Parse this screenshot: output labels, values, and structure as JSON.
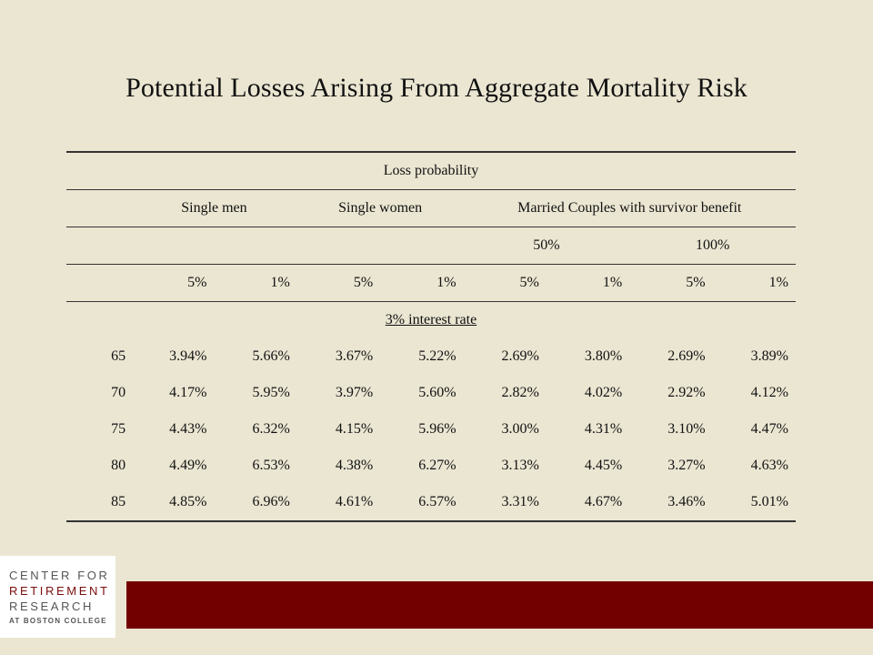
{
  "title": "Potential Losses Arising From Aggregate Mortality Risk",
  "table": {
    "header_loss": "Loss probability",
    "group_labels": [
      "Single men",
      "Single women",
      "Married Couples with survivor benefit"
    ],
    "benefit_labels": [
      "50%",
      "100%"
    ],
    "prob_labels": [
      "5%",
      "1%",
      "5%",
      "1%",
      "5%",
      "1%",
      "5%",
      "1%"
    ],
    "section_label": "3% interest rate",
    "rows": [
      {
        "age": "65",
        "values": [
          "3.94%",
          "5.66%",
          "3.67%",
          "5.22%",
          "2.69%",
          "3.80%",
          "2.69%",
          "3.89%"
        ]
      },
      {
        "age": "70",
        "values": [
          "4.17%",
          "5.95%",
          "3.97%",
          "5.60%",
          "2.82%",
          "4.02%",
          "2.92%",
          "4.12%"
        ]
      },
      {
        "age": "75",
        "values": [
          "4.43%",
          "6.32%",
          "4.15%",
          "5.96%",
          "3.00%",
          "4.31%",
          "3.10%",
          "4.47%"
        ]
      },
      {
        "age": "80",
        "values": [
          "4.49%",
          "6.53%",
          "4.38%",
          "6.27%",
          "3.13%",
          "4.45%",
          "3.27%",
          "4.63%"
        ]
      },
      {
        "age": "85",
        "values": [
          "4.85%",
          "6.96%",
          "4.61%",
          "6.57%",
          "3.31%",
          "4.67%",
          "3.46%",
          "5.01%"
        ]
      }
    ]
  },
  "logo": {
    "line1": "CENTER FOR",
    "line2": "RETIREMENT",
    "line3": "RESEARCH",
    "line4": "AT BOSTON COLLEGE"
  },
  "colors": {
    "background": "#ebe6d2",
    "accent": "#730000"
  }
}
